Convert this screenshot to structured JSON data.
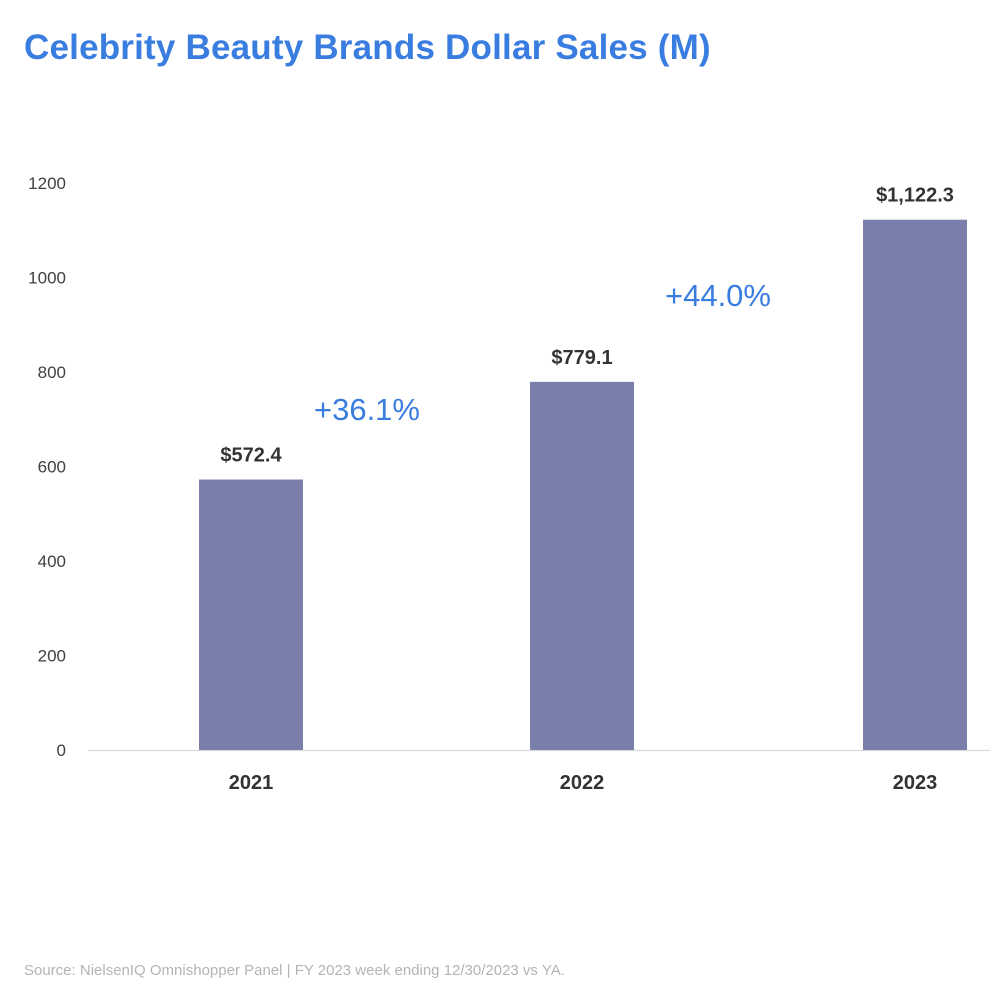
{
  "chart_data": {
    "type": "bar",
    "title": "Celebrity Beauty Brands Dollar Sales (M)",
    "categories": [
      "2021",
      "2022",
      "2023"
    ],
    "values": [
      572.4,
      779.1,
      1122.3
    ],
    "data_labels": [
      "$572.4",
      "$779.1",
      "$1,122.3"
    ],
    "yticks": [
      "0",
      "200",
      "400",
      "600",
      "800",
      "1000",
      "1200"
    ],
    "ylim": [
      0,
      1200
    ],
    "xlabel": "",
    "ylabel": "",
    "grid": false,
    "legend": "none",
    "annotations": [
      {
        "text": "+36.1%",
        "between": [
          "2021",
          "2022"
        ]
      },
      {
        "text": "+44.0%",
        "between": [
          "2022",
          "2023"
        ]
      }
    ],
    "bar_color": "#7a7eab",
    "annotation_color": "#3a7de0"
  },
  "source": "Source: NielsenIQ Omnishopper Panel | FY 2023 week ending 12/30/2023 vs YA."
}
